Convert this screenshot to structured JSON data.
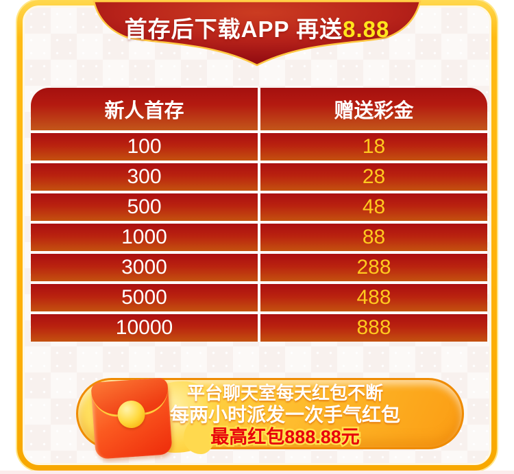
{
  "banner": {
    "text_main": "首存后下载APP 再送",
    "text_highlight": "8.88"
  },
  "table": {
    "headers": [
      "新人首存",
      "赠送彩金"
    ],
    "rows": [
      {
        "deposit": "100",
        "bonus": "18"
      },
      {
        "deposit": "300",
        "bonus": "28"
      },
      {
        "deposit": "500",
        "bonus": "48"
      },
      {
        "deposit": "1000",
        "bonus": "88"
      },
      {
        "deposit": "3000",
        "bonus": "288"
      },
      {
        "deposit": "5000",
        "bonus": "488"
      },
      {
        "deposit": "10000",
        "bonus": "888"
      }
    ]
  },
  "promo": {
    "line1": "平台聊天室每天红包不断",
    "line2": "每两小时派发一次手气红包",
    "line3": "最高红包888.88元"
  },
  "colors": {
    "frame_gold": "#ffb20a",
    "ribbon_red_center": "#c93a20",
    "ribbon_red_edge": "#9c0f13",
    "ribbon_trim_gold": "#ffc843",
    "row_red_top": "#ab0f11",
    "row_orange_bottom": "#c4510f",
    "bonus_text": "#ffc91f",
    "highlight_yellow": "#ffe51c",
    "pill_orange": "#fdb527",
    "pill_border": "#ef8b02",
    "promo_red_text": "#e8000b",
    "envelope_red": "#ef2f0c"
  }
}
